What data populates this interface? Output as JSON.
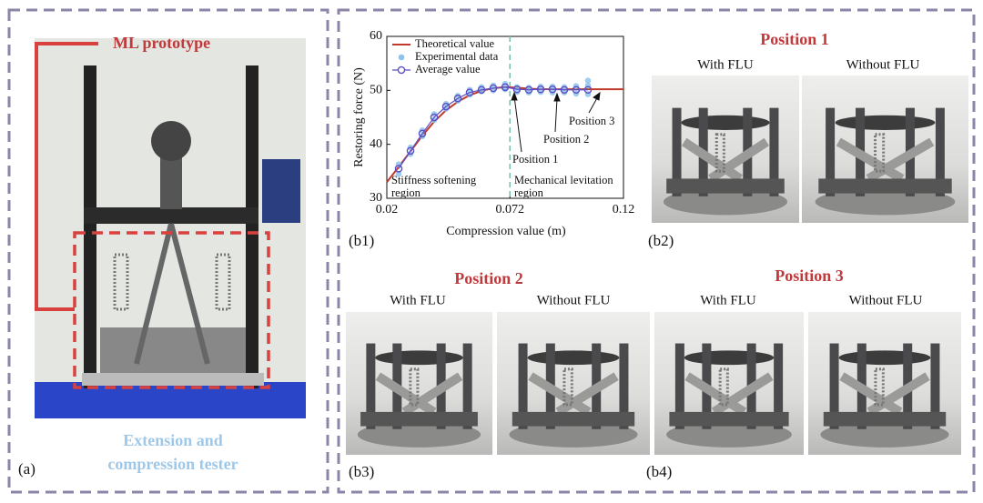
{
  "panel_a": {
    "title": "ML prototype",
    "caption": [
      "Extension and",
      "compression tester"
    ],
    "label": "(a)"
  },
  "chart_data": {
    "type": "line",
    "xlabel": "Compression value (m)",
    "ylabel": "Restoring force (N)",
    "xlim": [
      0.02,
      0.12
    ],
    "xticks": [
      0.02,
      0.072,
      0.12
    ],
    "ylim": [
      30,
      60
    ],
    "yticks": [
      30,
      40,
      50,
      60
    ],
    "divider": 0.072,
    "legend": "upper left",
    "series": [
      {
        "name": "Theoretical value",
        "color": "#c0392b",
        "kind": "line",
        "x": [
          0.02,
          0.025,
          0.03,
          0.035,
          0.04,
          0.045,
          0.05,
          0.055,
          0.06,
          0.065,
          0.07,
          0.075,
          0.08,
          0.085,
          0.09,
          0.095,
          0.1,
          0.105,
          0.11,
          0.115,
          0.12
        ],
        "values": [
          33,
          35.8,
          38.7,
          41.6,
          44.2,
          46.3,
          47.9,
          49.1,
          49.9,
          50.4,
          50.6,
          50.5,
          50.3,
          50.2,
          50.2,
          50.2,
          50.2,
          50.2,
          50.2,
          50.2,
          50.2
        ]
      },
      {
        "name": "Experimental data",
        "color": "#8fc3ea",
        "kind": "dots",
        "x": [
          0.025,
          0.025,
          0.03,
          0.03,
          0.035,
          0.035,
          0.04,
          0.04,
          0.045,
          0.045,
          0.05,
          0.05,
          0.055,
          0.055,
          0.06,
          0.06,
          0.065,
          0.065,
          0.07,
          0.07,
          0.075,
          0.075,
          0.08,
          0.08,
          0.085,
          0.085,
          0.09,
          0.09,
          0.095,
          0.095,
          0.1,
          0.1,
          0.105,
          0.105,
          0.105
        ],
        "values": [
          34.5,
          36.3,
          38.2,
          39.4,
          41.5,
          42.6,
          44.5,
          45.6,
          46.6,
          47.5,
          48.1,
          49,
          49.2,
          50.1,
          49.8,
          50.6,
          50,
          50.9,
          50.2,
          51.2,
          49.7,
          50.6,
          49.6,
          50.5,
          49.7,
          50.7,
          49.6,
          50.7,
          49.6,
          50.6,
          49.4,
          50.8,
          49.3,
          50.9,
          51.8
        ]
      },
      {
        "name": "Average value",
        "color": "#5b4fc4",
        "kind": "circles",
        "x": [
          0.025,
          0.03,
          0.035,
          0.04,
          0.045,
          0.05,
          0.055,
          0.06,
          0.065,
          0.07,
          0.075,
          0.08,
          0.085,
          0.09,
          0.095,
          0.1,
          0.105
        ],
        "values": [
          35.5,
          38.8,
          42,
          45,
          47,
          48.5,
          49.6,
          50.1,
          50.4,
          50.6,
          50.2,
          50.1,
          50.2,
          50.2,
          50.1,
          50.1,
          50.1
        ]
      }
    ],
    "annotations": {
      "left_region": [
        "Stiffness softening",
        "region"
      ],
      "right_region": [
        "Mechanical levitation",
        "region"
      ],
      "position_1": "Position 1",
      "position_2": "Position 2",
      "position_3": "Position 3"
    },
    "label": "(b1)"
  },
  "panel_b2": {
    "title": "Position 1",
    "left": "With FLU",
    "right": "Without FLU",
    "label": "(b2)"
  },
  "panel_b3": {
    "title": "Position 2",
    "left": "With FLU",
    "right": "Without FLU",
    "label": "(b3)"
  },
  "panel_b4": {
    "title": "Position 3",
    "left": "With FLU",
    "right": "Without FLU",
    "label": "(b4)"
  }
}
